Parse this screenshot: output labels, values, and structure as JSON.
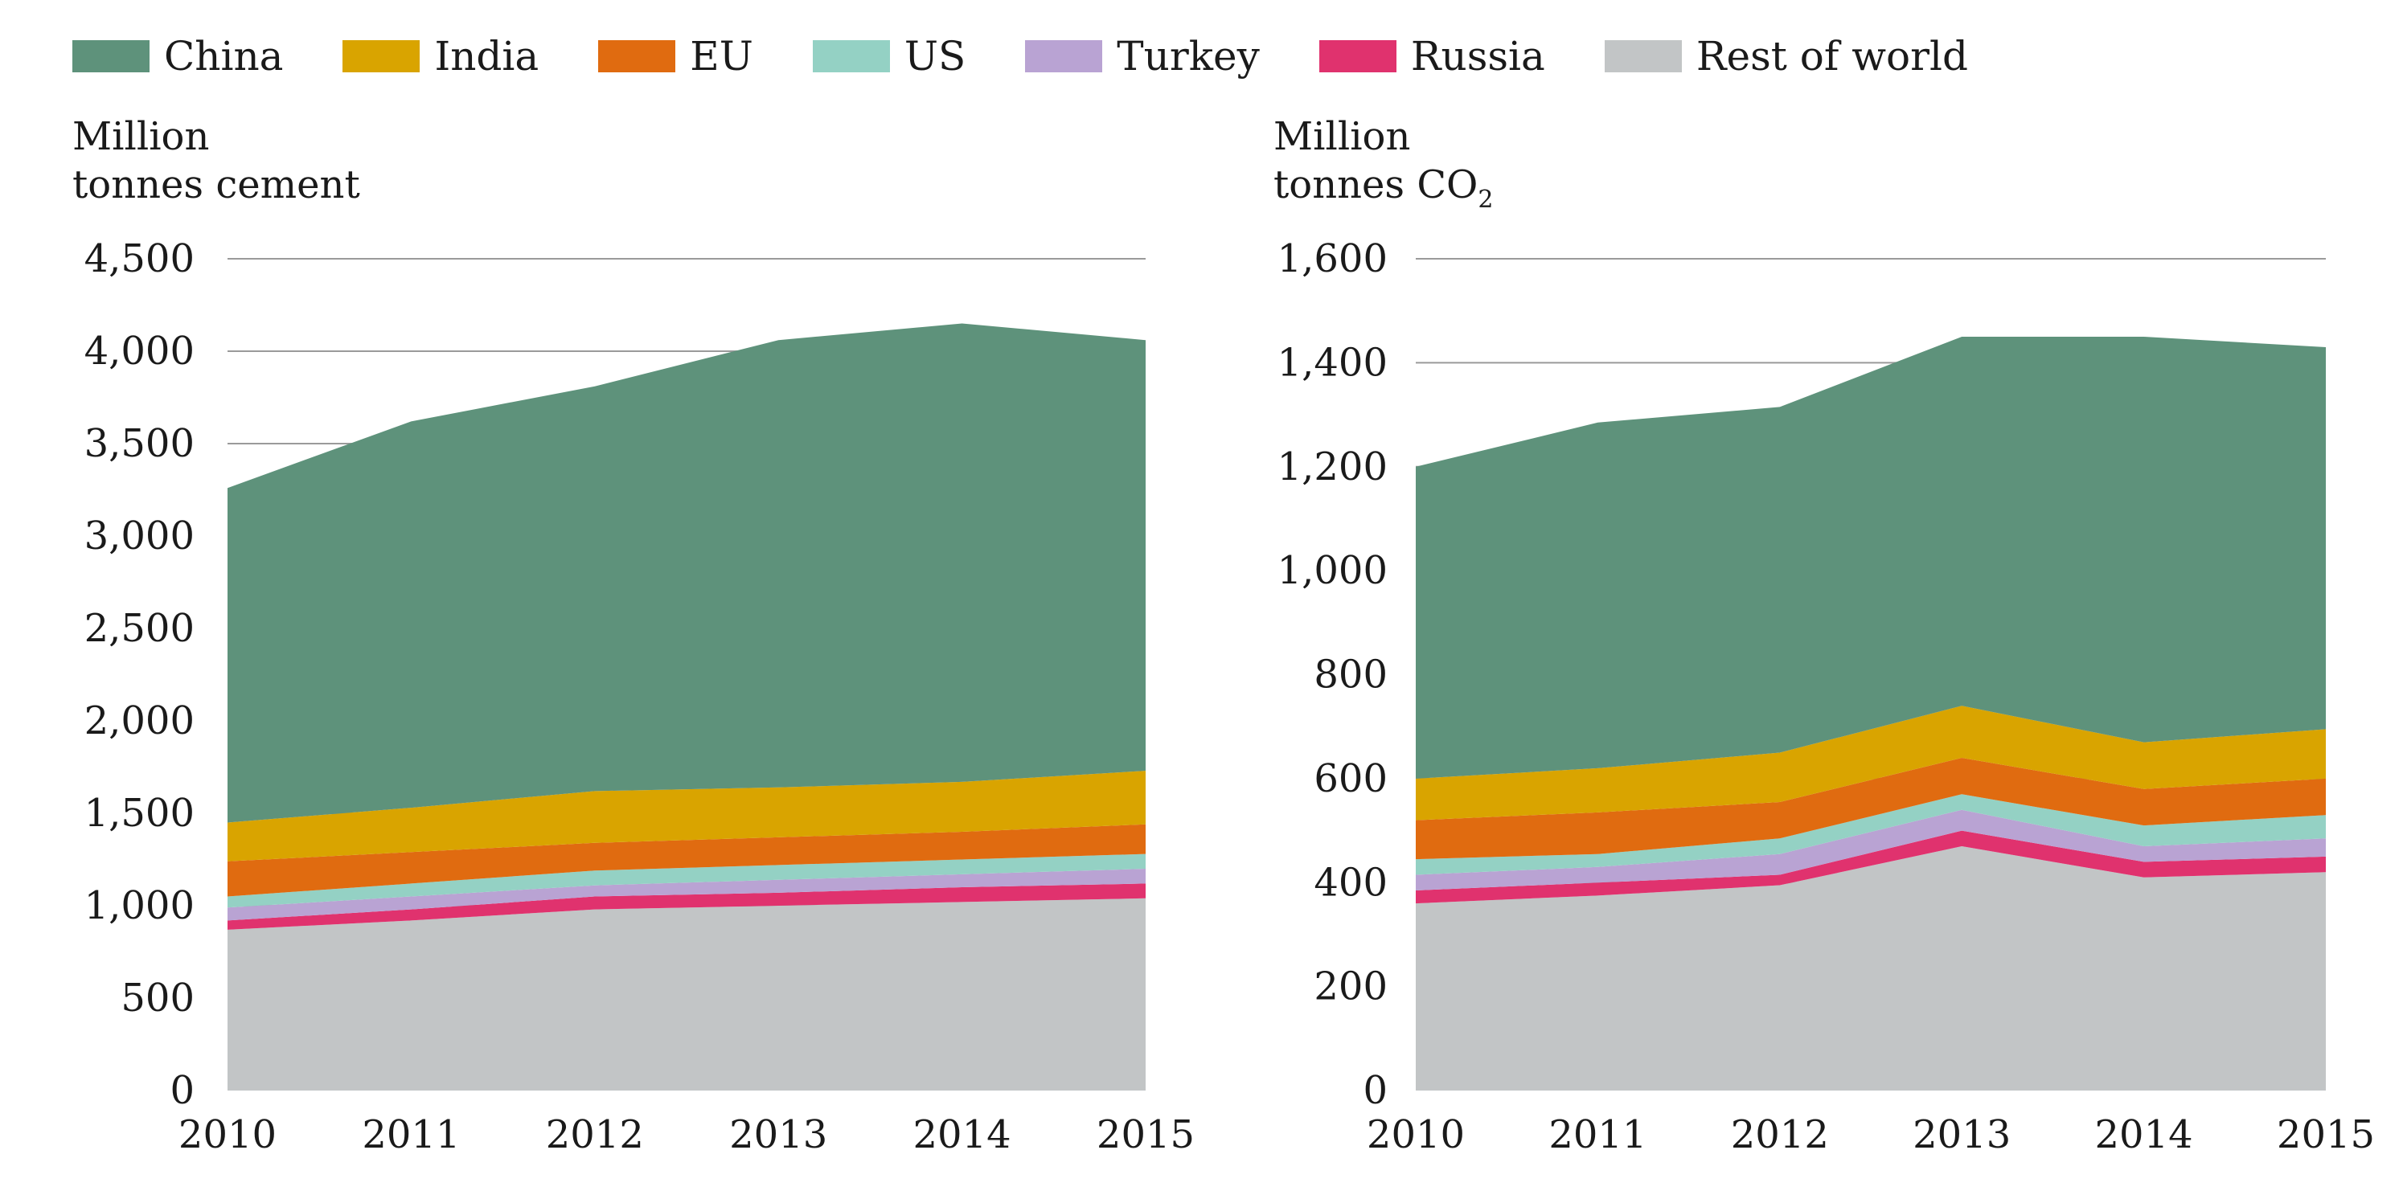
{
  "legend": {
    "items": [
      {
        "label": "China",
        "color": "#5e927b"
      },
      {
        "label": "India",
        "color": "#d9a400"
      },
      {
        "label": "EU",
        "color": "#e06b10"
      },
      {
        "label": "US",
        "color": "#94d1c4"
      },
      {
        "label": "Turkey",
        "color": "#b9a3d3"
      },
      {
        "label": "Russia",
        "color": "#e0326e"
      },
      {
        "label": "Rest of world",
        "color": "#c2c5c6"
      }
    ]
  },
  "left_unit": {
    "line1": "Million",
    "line2": "tonnes cement"
  },
  "right_unit": {
    "line1": "Million",
    "line2_main": "tonnes CO",
    "line2_sub": "2"
  },
  "chart_data": [
    {
      "type": "area",
      "stacked": true,
      "x": [
        "2010",
        "2011",
        "2012",
        "2013",
        "2014",
        "2015"
      ],
      "ylim": [
        0,
        4500
      ],
      "yticks": [
        "0",
        "500",
        "1,000",
        "1,500",
        "2,000",
        "2,500",
        "3,000",
        "3,500",
        "4,000",
        "4,500"
      ],
      "ytick_values": [
        0,
        500,
        1000,
        1500,
        2000,
        2500,
        3000,
        3500,
        4000,
        4500
      ],
      "ylabel": "Million tonnes cement",
      "grid": "horizontal",
      "series": [
        {
          "name": "Rest of world",
          "color": "#c2c5c6",
          "values": [
            870,
            920,
            980,
            1000,
            1020,
            1040
          ]
        },
        {
          "name": "Russia",
          "color": "#e0326e",
          "values": [
            50,
            60,
            70,
            70,
            80,
            80
          ]
        },
        {
          "name": "Turkey",
          "color": "#b9a3d3",
          "values": [
            70,
            70,
            60,
            70,
            70,
            80
          ]
        },
        {
          "name": "US",
          "color": "#94d1c4",
          "values": [
            60,
            70,
            80,
            80,
            80,
            80
          ]
        },
        {
          "name": "EU",
          "color": "#e06b10",
          "values": [
            190,
            170,
            150,
            150,
            150,
            160
          ]
        },
        {
          "name": "India",
          "color": "#d9a400",
          "values": [
            210,
            240,
            280,
            270,
            270,
            290
          ]
        },
        {
          "name": "China",
          "color": "#5e927b",
          "values": [
            1810,
            2090,
            2190,
            2420,
            2480,
            2330
          ]
        }
      ]
    },
    {
      "type": "area",
      "stacked": true,
      "x": [
        "2010",
        "2011",
        "2012",
        "2013",
        "2014",
        "2015"
      ],
      "ylim": [
        0,
        1600
      ],
      "yticks": [
        "0",
        "200",
        "400",
        "600",
        "800",
        "1,000",
        "1,200",
        "1,400",
        "1,600"
      ],
      "ytick_values": [
        0,
        200,
        400,
        600,
        800,
        1000,
        1200,
        1400,
        1600
      ],
      "ylabel": "Million tonnes CO2",
      "grid": "horizontal",
      "series": [
        {
          "name": "Rest of world",
          "color": "#c2c5c6",
          "values": [
            360,
            375,
            395,
            470,
            410,
            420
          ]
        },
        {
          "name": "Russia",
          "color": "#e0326e",
          "values": [
            25,
            25,
            20,
            30,
            30,
            30
          ]
        },
        {
          "name": "Turkey",
          "color": "#b9a3d3",
          "values": [
            30,
            30,
            40,
            40,
            30,
            35
          ]
        },
        {
          "name": "US",
          "color": "#94d1c4",
          "values": [
            30,
            25,
            30,
            30,
            40,
            45
          ]
        },
        {
          "name": "EU",
          "color": "#e06b10",
          "values": [
            75,
            80,
            70,
            70,
            70,
            70
          ]
        },
        {
          "name": "India",
          "color": "#d9a400",
          "values": [
            80,
            85,
            95,
            100,
            90,
            95
          ]
        },
        {
          "name": "China",
          "color": "#5e927b",
          "values": [
            600,
            665,
            665,
            710,
            780,
            735
          ]
        }
      ]
    }
  ]
}
